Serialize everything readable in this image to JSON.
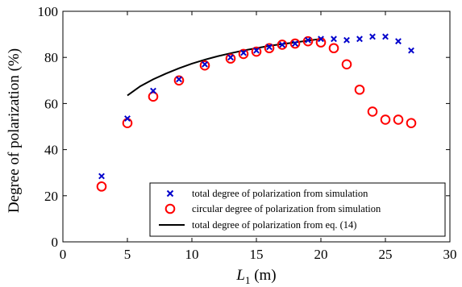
{
  "chart_data": {
    "type": "scatter",
    "xlabel": "L",
    "xlabel_subscript": "1",
    "xlabel_unit": " (m)",
    "ylabel": "Degree of polarization (%)",
    "xlim": [
      0,
      30
    ],
    "ylim": [
      0,
      100
    ],
    "xticks": [
      0,
      5,
      10,
      15,
      20,
      25,
      30
    ],
    "yticks": [
      0,
      20,
      40,
      60,
      80,
      100
    ],
    "grid": false,
    "legend_position": "bottom-right",
    "series": [
      {
        "name": "total degree of polarization from simulation",
        "marker": "x",
        "color": "#0000cc",
        "x": [
          3,
          5,
          7,
          9,
          11,
          13,
          14,
          15,
          16,
          17,
          18,
          19,
          20,
          21,
          22,
          23,
          24,
          25,
          26,
          27
        ],
        "y": [
          28.5,
          53.5,
          65.5,
          70.5,
          77.0,
          80.0,
          82.0,
          83.0,
          84.5,
          85.5,
          86.0,
          87.5,
          88.0,
          88.0,
          87.5,
          88.0,
          89.0,
          89.0,
          87.0,
          83.0
        ]
      },
      {
        "name": "circular degree of polarization from simulation",
        "marker": "circle",
        "color": "#ff0000",
        "x": [
          3,
          5,
          7,
          9,
          11,
          13,
          14,
          15,
          16,
          17,
          18,
          19,
          20,
          21,
          22,
          23,
          24,
          25,
          26,
          27
        ],
        "y": [
          24.0,
          51.5,
          63.0,
          70.0,
          76.5,
          79.5,
          81.5,
          82.5,
          84.0,
          85.5,
          86.0,
          87.0,
          86.5,
          84.0,
          77.0,
          66.0,
          56.5,
          53.0,
          53.0,
          51.5
        ]
      },
      {
        "name": "total degree of polarization from eq. (14)",
        "marker": "line",
        "color": "#000000",
        "x": [
          5,
          6,
          7,
          8,
          9,
          10,
          11,
          12,
          13,
          14,
          15,
          16,
          17,
          18,
          19,
          20
        ],
        "y": [
          63.5,
          67.5,
          70.5,
          73.0,
          75.3,
          77.3,
          79.0,
          80.5,
          81.8,
          83.0,
          84.0,
          85.0,
          85.8,
          86.5,
          87.3,
          88.0
        ]
      }
    ]
  }
}
